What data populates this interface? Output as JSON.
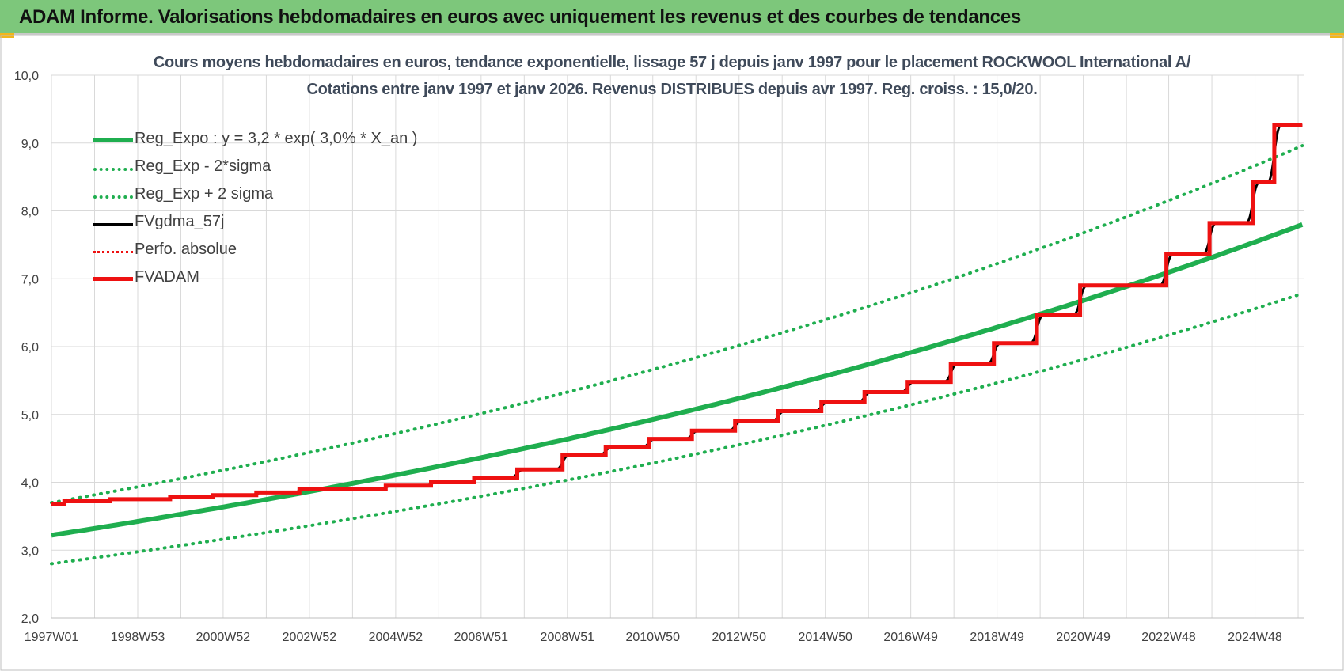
{
  "header": {
    "title": "ADAM Informe. Valorisations hebdomadaires en euros avec uniquement les revenus et des courbes de tendances"
  },
  "colors": {
    "header_bg": "#7dc77b",
    "reg_green": "#1fae4f",
    "black": "#000000",
    "red": "#ee1111",
    "grid": "#d9d9d9"
  },
  "chart_data": {
    "type": "line",
    "title": "Cours moyens hebdomadaires en euros, tendance exponentielle, lissage 57 j depuis janv 1997 pour le placement ROCKWOOL International A/",
    "subtitle": "Cotations entre janv 1997 et janv 2026. Revenus DISTRIBUES depuis avr 1997.  Reg. croiss. : 15,0/20.",
    "x_tick_labels": [
      "1997W01",
      "1998W53",
      "2000W52",
      "2002W52",
      "2004W52",
      "2006W51",
      "2008W51",
      "2010W50",
      "2012W50",
      "2014W50",
      "2016W49",
      "2018W49",
      "2020W49",
      "2022W48",
      "2024W48"
    ],
    "x_range": [
      1997.0,
      2026.05
    ],
    "y_tick_labels": [
      "2,0",
      "3,0",
      "4,0",
      "5,0",
      "6,0",
      "7,0",
      "8,0",
      "9,0",
      "10,0"
    ],
    "ylim": [
      2.0,
      10.0
    ],
    "grid": true,
    "legend_position": "top-left",
    "series": [
      {
        "name": "Reg_Expo : y = 3,2 * exp( 3,0% *  X_an )",
        "style": "solid-thick",
        "color": "#1fae4f",
        "model": {
          "a": 3.22,
          "rate": 0.0305
        }
      },
      {
        "name": "Reg_Exp - 2*sigma",
        "style": "dotted",
        "color": "#1fae4f",
        "model": {
          "a": 2.8,
          "rate": 0.0305
        }
      },
      {
        "name": "Reg_Exp + 2 sigma",
        "style": "dotted",
        "color": "#1fae4f",
        "model": {
          "a": 3.7,
          "rate": 0.0305
        }
      },
      {
        "name": "FVgdma_57j",
        "style": "solid",
        "color": "#000000"
      },
      {
        "name": "Perfo. absolue",
        "style": "dotted",
        "color": "#ee1111"
      },
      {
        "name": "FVADAM",
        "style": "solid-thick",
        "color": "#ee1111",
        "steps": [
          {
            "x": 1997.0,
            "y": 3.68
          },
          {
            "x": 1997.3,
            "y": 3.72
          },
          {
            "x": 1998.35,
            "y": 3.75
          },
          {
            "x": 1999.75,
            "y": 3.78
          },
          {
            "x": 2000.75,
            "y": 3.81
          },
          {
            "x": 2001.75,
            "y": 3.85
          },
          {
            "x": 2002.75,
            "y": 3.9
          },
          {
            "x": 2004.75,
            "y": 3.95
          },
          {
            "x": 2005.8,
            "y": 4.0
          },
          {
            "x": 2006.8,
            "y": 4.07
          },
          {
            "x": 2007.8,
            "y": 4.19
          },
          {
            "x": 2008.85,
            "y": 4.4
          },
          {
            "x": 2009.85,
            "y": 4.52
          },
          {
            "x": 2010.85,
            "y": 4.64
          },
          {
            "x": 2011.85,
            "y": 4.76
          },
          {
            "x": 2012.85,
            "y": 4.9
          },
          {
            "x": 2013.85,
            "y": 5.05
          },
          {
            "x": 2014.85,
            "y": 5.18
          },
          {
            "x": 2015.85,
            "y": 5.33
          },
          {
            "x": 2016.85,
            "y": 5.48
          },
          {
            "x": 2017.85,
            "y": 5.74
          },
          {
            "x": 2018.85,
            "y": 6.05
          },
          {
            "x": 2019.85,
            "y": 6.47
          },
          {
            "x": 2020.85,
            "y": 6.9
          },
          {
            "x": 2022.85,
            "y": 7.36
          },
          {
            "x": 2023.85,
            "y": 7.82
          },
          {
            "x": 2024.85,
            "y": 8.42
          },
          {
            "x": 2025.35,
            "y": 9.26
          }
        ]
      }
    ]
  }
}
